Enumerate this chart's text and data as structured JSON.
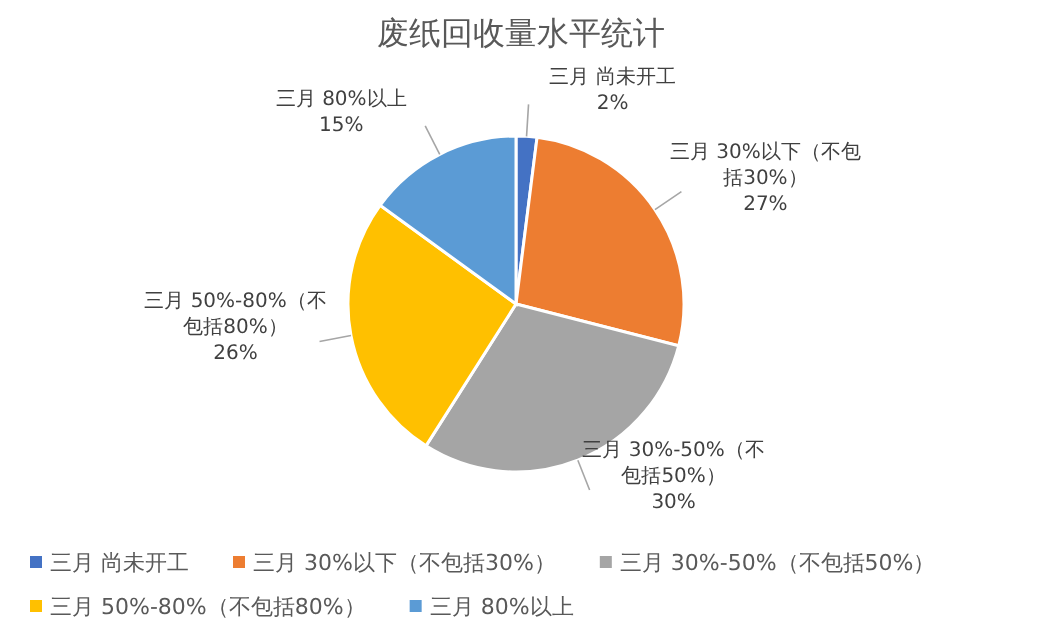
{
  "chart_data": {
    "type": "pie",
    "title": "废纸回收量水平统计",
    "categories": [
      "三月 尚未开工",
      "三月 30%以下（不包括30%）",
      "三月 30%-50%（不包括50%）",
      "三月 50%-80%（不包括80%）",
      "三月 80%以上"
    ],
    "values": [
      2,
      27,
      30,
      26,
      15
    ],
    "value_labels": [
      "2%",
      "27%",
      "30%",
      "26%",
      "15%"
    ],
    "colors": [
      "#4472c4",
      "#ed7d31",
      "#a5a5a5",
      "#ffc000",
      "#5b9bd5"
    ],
    "legend": "bottom"
  }
}
